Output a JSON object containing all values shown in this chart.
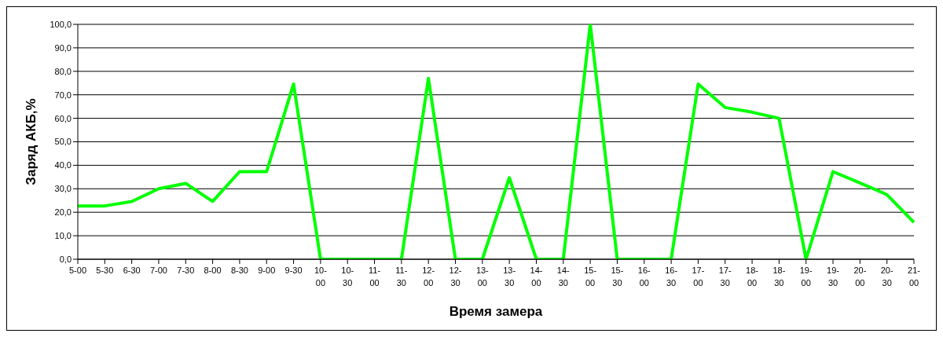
{
  "chart_data": {
    "type": "line",
    "xlabel": "Время замера",
    "ylabel": "Заряд АКБ,%",
    "categories": [
      "5-00",
      "5-30",
      "6-30",
      "7-00",
      "7-30",
      "8-00",
      "8-30",
      "9-00",
      "9-30",
      "10-00",
      "10-30",
      "11-00",
      "11-30",
      "12-00",
      "12-30",
      "13-00",
      "13-30",
      "14-00",
      "14-30",
      "15-00",
      "15-30",
      "16-00",
      "16-30",
      "17-00",
      "17-30",
      "18-00",
      "18-30",
      "19-00",
      "19-30",
      "20-00",
      "20-30",
      "21-00"
    ],
    "series": [
      {
        "color": "#00ff00",
        "values": [
          22.7,
          22.7,
          24.6,
          30,
          32.3,
          24.6,
          37.3,
          37.3,
          74.6,
          0,
          0,
          0,
          0,
          77,
          0,
          0,
          34.7,
          0,
          0,
          100,
          0,
          0,
          0,
          74.6,
          64.6,
          62.6,
          60,
          0,
          37.3,
          32.5,
          27.5,
          15.7
        ]
      }
    ],
    "ylim": [
      0,
      100
    ],
    "yticks": [
      {
        "value": 0,
        "label": "0,0"
      },
      {
        "value": 10,
        "label": "10,0"
      },
      {
        "value": 20,
        "label": "20,0"
      },
      {
        "value": 30,
        "label": "30,0"
      },
      {
        "value": 40,
        "label": "40,0"
      },
      {
        "value": 50,
        "label": "50,0"
      },
      {
        "value": 60,
        "label": "60,0"
      },
      {
        "value": 70,
        "label": "70,0"
      },
      {
        "value": 80,
        "label": "80,0"
      },
      {
        "value": 90,
        "label": "90,0"
      },
      {
        "value": 100,
        "label": "100,0"
      }
    ],
    "grid": "y",
    "marker": "none",
    "line_style": "solid"
  }
}
